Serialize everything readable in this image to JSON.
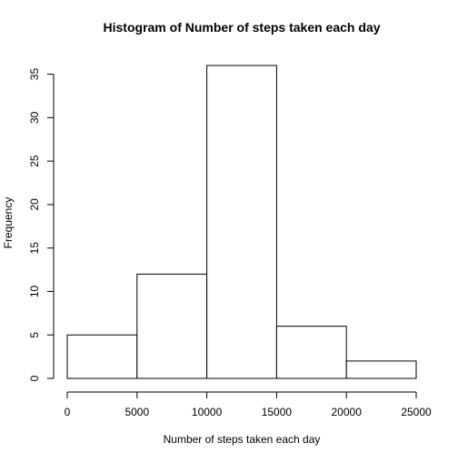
{
  "chart_data": {
    "type": "bar",
    "title": "Histogram of Number of steps taken each day",
    "xlabel": "Number of steps taken each day",
    "ylabel": "Frequency",
    "bins": [
      {
        "from": 0,
        "to": 5000,
        "count": 5
      },
      {
        "from": 5000,
        "to": 10000,
        "count": 12
      },
      {
        "from": 10000,
        "to": 15000,
        "count": 36
      },
      {
        "from": 15000,
        "to": 20000,
        "count": 6
      },
      {
        "from": 20000,
        "to": 25000,
        "count": 2
      }
    ],
    "xlim": [
      0,
      25000
    ],
    "ylim": [
      0,
      36
    ],
    "xticks": [
      0,
      5000,
      10000,
      15000,
      20000,
      25000
    ],
    "yticks": [
      0,
      5,
      10,
      15,
      20,
      25,
      30,
      35
    ],
    "grid": false,
    "bar_fill": "#ffffff",
    "bar_stroke": "#000000"
  }
}
